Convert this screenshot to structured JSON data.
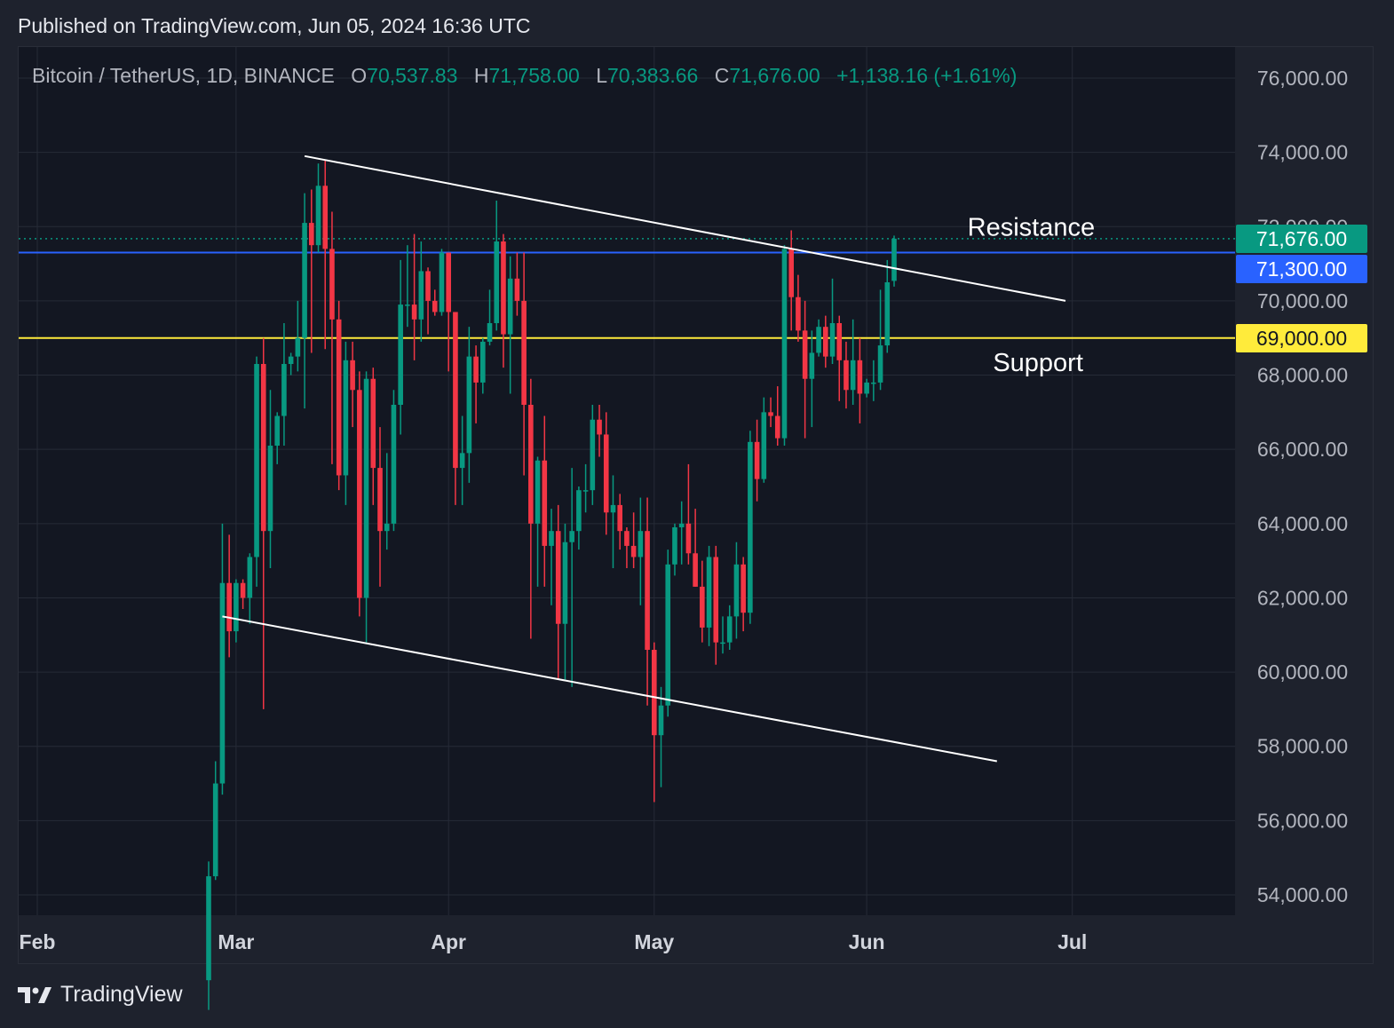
{
  "header": {
    "published": "Published on TradingView.com, Jun 05, 2024 16:36 UTC"
  },
  "legend": {
    "symbol": "Bitcoin / TetherUS, 1D, BINANCE",
    "open_label": "O",
    "open": "70,537.83",
    "high_label": "H",
    "high": "71,758.00",
    "low_label": "L",
    "low": "70,383.66",
    "close_label": "C",
    "close": "71,676.00",
    "change": "+1,138.16 (+1.61%)"
  },
  "footer": {
    "brand": "TradingView",
    "logo_icon": "tradingview-logo-icon"
  },
  "colors": {
    "background": "#131722",
    "panel": "#1e222d",
    "grid": "#262b37",
    "up": "#089981",
    "down": "#f23645",
    "support": "#ffeb3b",
    "resistance_line": "#2962ff",
    "trendline": "#ffffff"
  },
  "chart_data": {
    "type": "candlestick",
    "title": "Bitcoin / TetherUS, 1D, BINANCE",
    "x_ticks": [
      "Feb",
      "Mar",
      "Apr",
      "May",
      "Jun",
      "Jul"
    ],
    "y_ticks": [
      "76,000.00",
      "74,000.00",
      "72,000.00",
      "70,000.00",
      "68,000.00",
      "66,000.00",
      "64,000.00",
      "62,000.00",
      "60,000.00",
      "58,000.00",
      "56,000.00",
      "54,000.00"
    ],
    "y_range": [
      53500,
      77000
    ],
    "price_labels": [
      {
        "text": "71,676.00",
        "value": 71676,
        "color": "#089981"
      },
      {
        "text": "71,300.00",
        "value": 71300,
        "color": "#2962ff"
      },
      {
        "text": "69,000.00",
        "value": 69000,
        "color": "#ffeb3b"
      }
    ],
    "horizontal_lines": [
      {
        "name": "resistance-level",
        "value": 71300,
        "color": "#2962ff"
      },
      {
        "name": "support-level",
        "value": 69000,
        "color": "#ffeb3b"
      },
      {
        "name": "last-price",
        "value": 71676,
        "color": "#089981",
        "dotted": true
      }
    ],
    "trendlines": [
      {
        "name": "upper-trendline",
        "from": [
          "2024-03-11",
          73900
        ],
        "to": [
          "2024-06-30",
          70000
        ]
      },
      {
        "name": "lower-trendline",
        "from": [
          "2024-02-28",
          61500
        ],
        "to": [
          "2024-06-20",
          57600
        ]
      }
    ],
    "annotations": [
      {
        "text": "Resistance",
        "date": "2024-06-25",
        "value": 72000
      },
      {
        "text": "Support",
        "date": "2024-06-26",
        "value": 68350
      }
    ],
    "candles": [
      {
        "date": "2024-02-26",
        "o": 51700,
        "h": 54900,
        "l": 50900,
        "c": 54500
      },
      {
        "date": "2024-02-27",
        "o": 54500,
        "h": 57600,
        "l": 54400,
        "c": 57000
      },
      {
        "date": "2024-02-28",
        "o": 57000,
        "h": 64000,
        "l": 56700,
        "c": 62400
      },
      {
        "date": "2024-02-29",
        "o": 62400,
        "h": 63700,
        "l": 60400,
        "c": 61100
      },
      {
        "date": "2024-03-01",
        "o": 61100,
        "h": 62500,
        "l": 60800,
        "c": 62400
      },
      {
        "date": "2024-03-02",
        "o": 62400,
        "h": 62500,
        "l": 61700,
        "c": 62000
      },
      {
        "date": "2024-03-03",
        "o": 62000,
        "h": 63200,
        "l": 61300,
        "c": 63100
      },
      {
        "date": "2024-03-04",
        "o": 63100,
        "h": 68500,
        "l": 62300,
        "c": 68300
      },
      {
        "date": "2024-03-05",
        "o": 68300,
        "h": 69000,
        "l": 59000,
        "c": 63800
      },
      {
        "date": "2024-03-06",
        "o": 63800,
        "h": 67600,
        "l": 62800,
        "c": 66100
      },
      {
        "date": "2024-03-07",
        "o": 66100,
        "h": 67000,
        "l": 65600,
        "c": 66900
      },
      {
        "date": "2024-03-08",
        "o": 66900,
        "h": 69400,
        "l": 66100,
        "c": 68300
      },
      {
        "date": "2024-03-09",
        "o": 68300,
        "h": 68600,
        "l": 68000,
        "c": 68500
      },
      {
        "date": "2024-03-10",
        "o": 68500,
        "h": 70000,
        "l": 68100,
        "c": 69000
      },
      {
        "date": "2024-03-11",
        "o": 69000,
        "h": 72900,
        "l": 67100,
        "c": 72100
      },
      {
        "date": "2024-03-12",
        "o": 72100,
        "h": 73000,
        "l": 68600,
        "c": 71500
      },
      {
        "date": "2024-03-13",
        "o": 71500,
        "h": 73700,
        "l": 71300,
        "c": 73100
      },
      {
        "date": "2024-03-14",
        "o": 73100,
        "h": 73800,
        "l": 68700,
        "c": 71400
      },
      {
        "date": "2024-03-15",
        "o": 71400,
        "h": 72400,
        "l": 65600,
        "c": 69500
      },
      {
        "date": "2024-03-16",
        "o": 69500,
        "h": 70000,
        "l": 64900,
        "c": 65300
      },
      {
        "date": "2024-03-17",
        "o": 65300,
        "h": 68900,
        "l": 64500,
        "c": 68400
      },
      {
        "date": "2024-03-18",
        "o": 68400,
        "h": 68900,
        "l": 66600,
        "c": 67600
      },
      {
        "date": "2024-03-19",
        "o": 67600,
        "h": 68100,
        "l": 61500,
        "c": 62000
      },
      {
        "date": "2024-03-20",
        "o": 62000,
        "h": 68100,
        "l": 60800,
        "c": 67900
      },
      {
        "date": "2024-03-21",
        "o": 67900,
        "h": 68200,
        "l": 64500,
        "c": 65500
      },
      {
        "date": "2024-03-22",
        "o": 65500,
        "h": 66600,
        "l": 62300,
        "c": 63800
      },
      {
        "date": "2024-03-23",
        "o": 63800,
        "h": 65900,
        "l": 63300,
        "c": 64000
      },
      {
        "date": "2024-03-24",
        "o": 64000,
        "h": 67600,
        "l": 63800,
        "c": 67200
      },
      {
        "date": "2024-03-25",
        "o": 67200,
        "h": 71100,
        "l": 66400,
        "c": 69900
      },
      {
        "date": "2024-03-26",
        "o": 69900,
        "h": 71500,
        "l": 69300,
        "c": 69900
      },
      {
        "date": "2024-03-27",
        "o": 69900,
        "h": 71800,
        "l": 68400,
        "c": 69500
      },
      {
        "date": "2024-03-28",
        "o": 69500,
        "h": 71600,
        "l": 68900,
        "c": 70800
      },
      {
        "date": "2024-03-29",
        "o": 70800,
        "h": 70900,
        "l": 69100,
        "c": 70000
      },
      {
        "date": "2024-03-30",
        "o": 70000,
        "h": 70300,
        "l": 69600,
        "c": 69700
      },
      {
        "date": "2024-03-31",
        "o": 69700,
        "h": 71400,
        "l": 69600,
        "c": 71300
      },
      {
        "date": "2024-04-01",
        "o": 71300,
        "h": 71300,
        "l": 68100,
        "c": 69700
      },
      {
        "date": "2024-04-02",
        "o": 69700,
        "h": 69700,
        "l": 64500,
        "c": 65500
      },
      {
        "date": "2024-04-03",
        "o": 65500,
        "h": 66900,
        "l": 64500,
        "c": 65900
      },
      {
        "date": "2024-04-04",
        "o": 65900,
        "h": 69300,
        "l": 65100,
        "c": 68500
      },
      {
        "date": "2024-04-05",
        "o": 68500,
        "h": 68800,
        "l": 66700,
        "c": 67800
      },
      {
        "date": "2024-04-06",
        "o": 67800,
        "h": 69000,
        "l": 67500,
        "c": 68900
      },
      {
        "date": "2024-04-07",
        "o": 68900,
        "h": 70300,
        "l": 68800,
        "c": 69400
      },
      {
        "date": "2024-04-08",
        "o": 69400,
        "h": 72700,
        "l": 69200,
        "c": 71600
      },
      {
        "date": "2024-04-09",
        "o": 71600,
        "h": 71800,
        "l": 68200,
        "c": 69100
      },
      {
        "date": "2024-04-10",
        "o": 69100,
        "h": 71200,
        "l": 67500,
        "c": 70600
      },
      {
        "date": "2024-04-11",
        "o": 70600,
        "h": 71300,
        "l": 69600,
        "c": 70000
      },
      {
        "date": "2024-04-12",
        "o": 70000,
        "h": 71300,
        "l": 65300,
        "c": 67200
      },
      {
        "date": "2024-04-13",
        "o": 67200,
        "h": 67900,
        "l": 60900,
        "c": 64000
      },
      {
        "date": "2024-04-14",
        "o": 64000,
        "h": 65800,
        "l": 62300,
        "c": 65700
      },
      {
        "date": "2024-04-15",
        "o": 65700,
        "h": 66900,
        "l": 62300,
        "c": 63400
      },
      {
        "date": "2024-04-16",
        "o": 63400,
        "h": 64400,
        "l": 61800,
        "c": 63800
      },
      {
        "date": "2024-04-17",
        "o": 63800,
        "h": 64500,
        "l": 59800,
        "c": 61300
      },
      {
        "date": "2024-04-18",
        "o": 61300,
        "h": 64000,
        "l": 59800,
        "c": 63500
      },
      {
        "date": "2024-04-19",
        "o": 63500,
        "h": 65500,
        "l": 59600,
        "c": 63800
      },
      {
        "date": "2024-04-20",
        "o": 63800,
        "h": 65000,
        "l": 63300,
        "c": 64900
      },
      {
        "date": "2024-04-21",
        "o": 64900,
        "h": 65600,
        "l": 64300,
        "c": 64900
      },
      {
        "date": "2024-04-22",
        "o": 64900,
        "h": 67200,
        "l": 64500,
        "c": 66800
      },
      {
        "date": "2024-04-23",
        "o": 66800,
        "h": 67200,
        "l": 65800,
        "c": 66400
      },
      {
        "date": "2024-04-24",
        "o": 66400,
        "h": 67000,
        "l": 63700,
        "c": 64300
      },
      {
        "date": "2024-04-25",
        "o": 64300,
        "h": 65300,
        "l": 62800,
        "c": 64500
      },
      {
        "date": "2024-04-26",
        "o": 64500,
        "h": 64800,
        "l": 63300,
        "c": 63800
      },
      {
        "date": "2024-04-27",
        "o": 63800,
        "h": 63900,
        "l": 62800,
        "c": 63400
      },
      {
        "date": "2024-04-28",
        "o": 63400,
        "h": 64300,
        "l": 62800,
        "c": 63100
      },
      {
        "date": "2024-04-29",
        "o": 63100,
        "h": 64700,
        "l": 61800,
        "c": 63800
      },
      {
        "date": "2024-04-30",
        "o": 63800,
        "h": 64700,
        "l": 59100,
        "c": 60600
      },
      {
        "date": "2024-05-01",
        "o": 60600,
        "h": 60800,
        "l": 56500,
        "c": 58300
      },
      {
        "date": "2024-05-02",
        "o": 58300,
        "h": 59600,
        "l": 56900,
        "c": 59100
      },
      {
        "date": "2024-05-03",
        "o": 59100,
        "h": 63300,
        "l": 58800,
        "c": 62900
      },
      {
        "date": "2024-05-04",
        "o": 62900,
        "h": 64000,
        "l": 62600,
        "c": 63900
      },
      {
        "date": "2024-05-05",
        "o": 63900,
        "h": 64600,
        "l": 62900,
        "c": 64000
      },
      {
        "date": "2024-05-06",
        "o": 64000,
        "h": 65600,
        "l": 62900,
        "c": 63200
      },
      {
        "date": "2024-05-07",
        "o": 63200,
        "h": 64400,
        "l": 62300,
        "c": 62300
      },
      {
        "date": "2024-05-08",
        "o": 62300,
        "h": 63000,
        "l": 60800,
        "c": 61200
      },
      {
        "date": "2024-05-09",
        "o": 61200,
        "h": 63400,
        "l": 60700,
        "c": 63100
      },
      {
        "date": "2024-05-10",
        "o": 63100,
        "h": 63400,
        "l": 60200,
        "c": 60800
      },
      {
        "date": "2024-05-11",
        "o": 60800,
        "h": 61500,
        "l": 60500,
        "c": 60800
      },
      {
        "date": "2024-05-12",
        "o": 60800,
        "h": 61800,
        "l": 60600,
        "c": 61500
      },
      {
        "date": "2024-05-13",
        "o": 61500,
        "h": 63500,
        "l": 60900,
        "c": 62900
      },
      {
        "date": "2024-05-14",
        "o": 62900,
        "h": 63100,
        "l": 61100,
        "c": 61600
      },
      {
        "date": "2024-05-15",
        "o": 61600,
        "h": 66500,
        "l": 61300,
        "c": 66200
      },
      {
        "date": "2024-05-16",
        "o": 66200,
        "h": 66800,
        "l": 64600,
        "c": 65200
      },
      {
        "date": "2024-05-17",
        "o": 65200,
        "h": 67400,
        "l": 65100,
        "c": 67000
      },
      {
        "date": "2024-05-18",
        "o": 67000,
        "h": 67400,
        "l": 66600,
        "c": 66900
      },
      {
        "date": "2024-05-19",
        "o": 66900,
        "h": 67700,
        "l": 66100,
        "c": 66300
      },
      {
        "date": "2024-05-20",
        "o": 66300,
        "h": 71500,
        "l": 66100,
        "c": 71400
      },
      {
        "date": "2024-05-21",
        "o": 71400,
        "h": 71900,
        "l": 69200,
        "c": 70100
      },
      {
        "date": "2024-05-22",
        "o": 70100,
        "h": 70700,
        "l": 68900,
        "c": 69200
      },
      {
        "date": "2024-05-23",
        "o": 69200,
        "h": 70000,
        "l": 66300,
        "c": 67900
      },
      {
        "date": "2024-05-24",
        "o": 67900,
        "h": 69200,
        "l": 66600,
        "c": 68600
      },
      {
        "date": "2024-05-25",
        "o": 68600,
        "h": 69500,
        "l": 68500,
        "c": 69300
      },
      {
        "date": "2024-05-26",
        "o": 69300,
        "h": 69600,
        "l": 68200,
        "c": 68500
      },
      {
        "date": "2024-05-27",
        "o": 68500,
        "h": 70600,
        "l": 68300,
        "c": 69400
      },
      {
        "date": "2024-05-28",
        "o": 69400,
        "h": 69600,
        "l": 67300,
        "c": 68400
      },
      {
        "date": "2024-05-29",
        "o": 68400,
        "h": 68900,
        "l": 67100,
        "c": 67600
      },
      {
        "date": "2024-05-30",
        "o": 67600,
        "h": 69500,
        "l": 67200,
        "c": 68400
      },
      {
        "date": "2024-05-31",
        "o": 68400,
        "h": 69000,
        "l": 66700,
        "c": 67500
      },
      {
        "date": "2024-06-01",
        "o": 67500,
        "h": 67900,
        "l": 67400,
        "c": 67800
      },
      {
        "date": "2024-06-02",
        "o": 67800,
        "h": 68400,
        "l": 67300,
        "c": 67800
      },
      {
        "date": "2024-06-03",
        "o": 67800,
        "h": 70300,
        "l": 67600,
        "c": 68800
      },
      {
        "date": "2024-06-04",
        "o": 68800,
        "h": 71100,
        "l": 68600,
        "c": 70500
      },
      {
        "date": "2024-06-05",
        "o": 70538,
        "h": 71758,
        "l": 70384,
        "c": 71676
      }
    ]
  }
}
